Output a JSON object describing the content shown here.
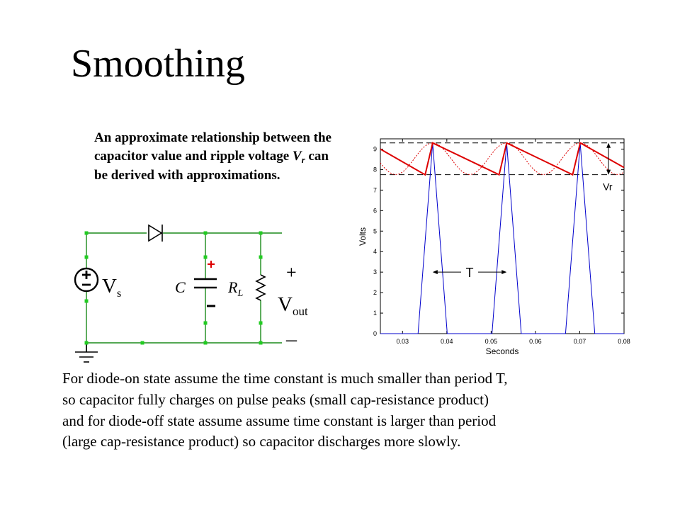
{
  "slide": {
    "title": "Smoothing",
    "intro": {
      "text_before": "An approximate relationship between the capacitor value and ripple voltage ",
      "symbol": "V",
      "symbol_sub": "r",
      "text_after": " can be derived with approximations."
    },
    "body_lines": [
      "For diode-on state assume the time constant is much smaller than period T,",
      "so capacitor fully charges on pulse peaks (small cap-resistance product)",
      "and for diode-off state assume assume time constant is larger than period",
      "(large cap-resistance product) so capacitor discharges more slowly."
    ]
  },
  "circuit": {
    "source_label": "V",
    "source_label_sub": "s",
    "capacitor_label": "C",
    "resistor_label": "R",
    "resistor_label_sub": "L",
    "output_plus": "+",
    "output_label": "V",
    "output_label_sub": "out",
    "output_minus": "–",
    "colors": {
      "wire": "#1a8a1a",
      "node": "#22cc22",
      "component": "#000000",
      "polarity": "#dd0000"
    }
  },
  "chart_data": {
    "type": "line",
    "xlabel": "Seconds",
    "ylabel": "Volts",
    "xlim": [
      0.025,
      0.08
    ],
    "ylim": [
      0,
      9.5
    ],
    "x_ticks": [
      "0.03",
      "0.04",
      "0.05",
      "0.06",
      "0.07",
      "0.08"
    ],
    "y_ticks": [
      "0",
      "1",
      "2",
      "3",
      "4",
      "5",
      "6",
      "7",
      "8",
      "9"
    ],
    "series": [
      {
        "style": "rectified pulses",
        "color": "#0000cc",
        "points": [
          [
            0.025,
            0
          ],
          [
            0.0335,
            0
          ],
          [
            0.0368,
            9.3
          ],
          [
            0.0401,
            0
          ],
          [
            0.0502,
            0
          ],
          [
            0.0535,
            9.3
          ],
          [
            0.0568,
            0
          ],
          [
            0.0668,
            0
          ],
          [
            0.0701,
            9.3
          ],
          [
            0.0734,
            0
          ],
          [
            0.08,
            0
          ]
        ]
      },
      {
        "style": "smoothed output",
        "color": "#dd0000",
        "points": [
          [
            0.025,
            9.0
          ],
          [
            0.0351,
            7.75
          ],
          [
            0.0368,
            9.3
          ],
          [
            0.0518,
            7.75
          ],
          [
            0.0535,
            9.3
          ],
          [
            0.0684,
            7.75
          ],
          [
            0.0701,
            9.3
          ],
          [
            0.08,
            8.1
          ]
        ]
      },
      {
        "style": "dotted sine",
        "color": "#dd0000",
        "amplitude_center": 8.53,
        "amplitude": 0.77,
        "peaks_at": [
          0.0368,
          0.0535,
          0.0701
        ],
        "period": 0.01667
      }
    ],
    "reference_lines": [
      9.3,
      7.75
    ],
    "annotations": [
      {
        "label": "Vr",
        "x": 0.0765,
        "from": 7.75,
        "to": 9.3
      },
      {
        "label": "T",
        "from": 0.0368,
        "to": 0.0535,
        "y": 3.0
      }
    ],
    "grid": false
  }
}
